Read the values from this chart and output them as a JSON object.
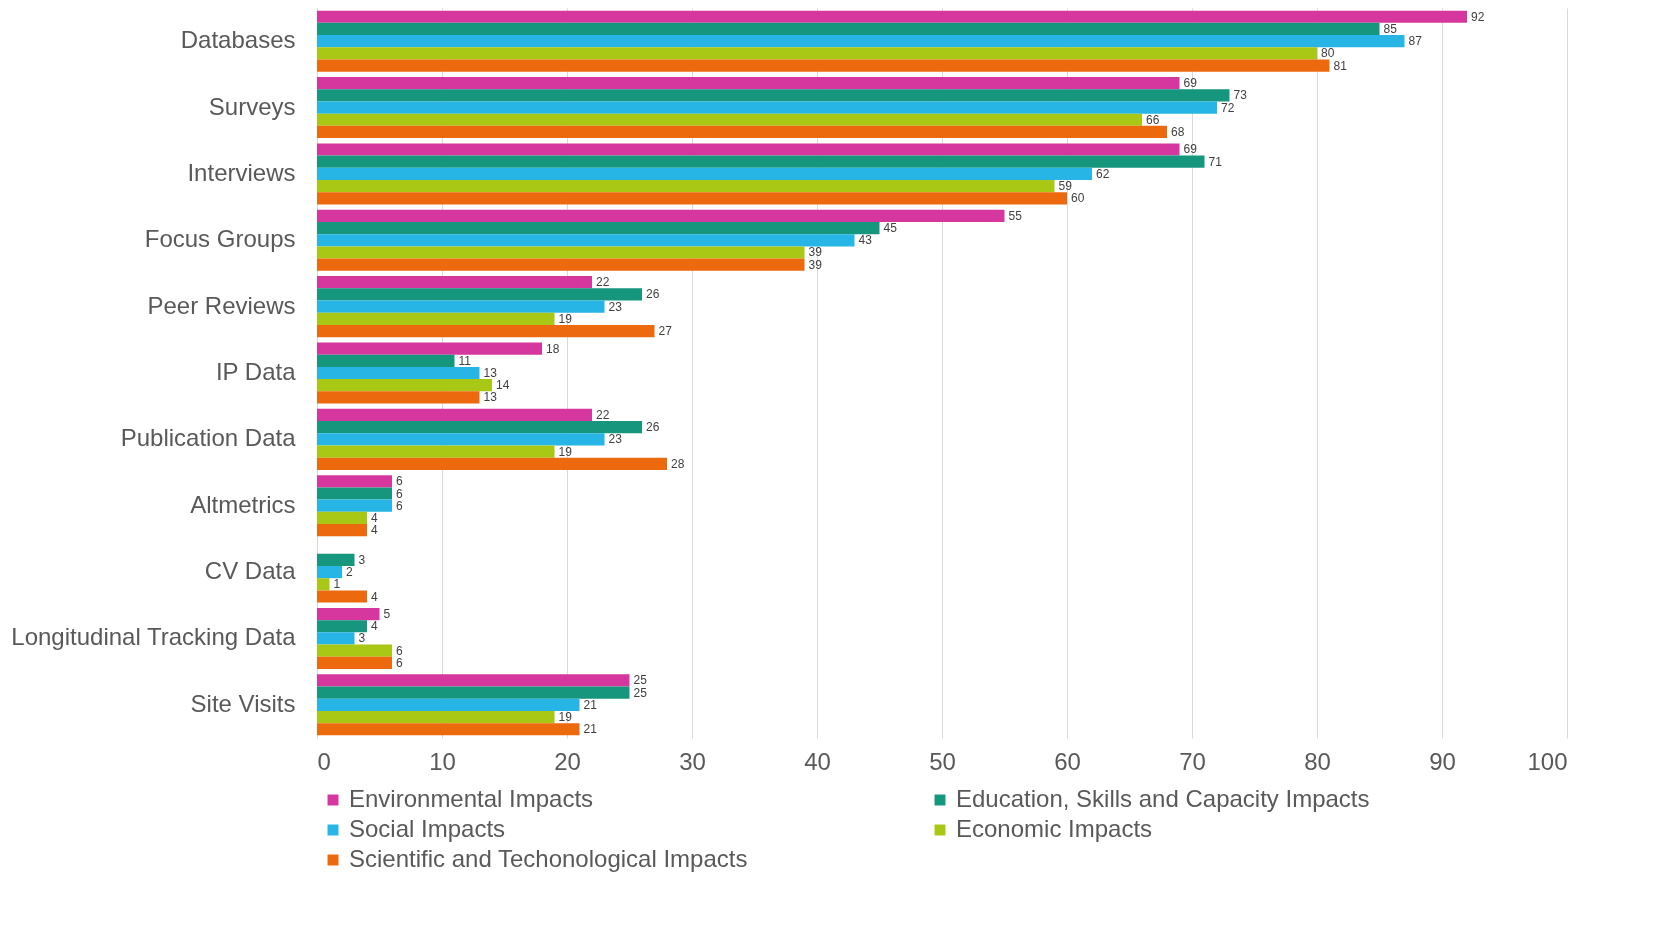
{
  "chart_data": {
    "type": "bar",
    "orientation": "horizontal",
    "categories": [
      "Databases",
      "Surveys",
      "Interviews",
      "Focus Groups",
      "Peer Reviews",
      "IP Data",
      "Publication Data",
      "Altmetrics",
      "CV Data",
      "Longitudinal Tracking Data",
      "Site Visits"
    ],
    "series": [
      {
        "name": "Environmental Impacts",
        "color": "#d6379f",
        "values": [
          92,
          69,
          69,
          55,
          22,
          18,
          22,
          6,
          null,
          5,
          25
        ]
      },
      {
        "name": "Education, Skills and Capacity Impacts",
        "color": "#15967d",
        "values": [
          85,
          73,
          71,
          45,
          26,
          11,
          26,
          6,
          3,
          4,
          25
        ]
      },
      {
        "name": "Social Impacts",
        "color": "#27b5e5",
        "values": [
          87,
          72,
          62,
          43,
          23,
          13,
          23,
          6,
          2,
          3,
          21
        ]
      },
      {
        "name": "Economic Impacts",
        "color": "#a9c715",
        "values": [
          80,
          66,
          59,
          39,
          19,
          14,
          19,
          4,
          1,
          6,
          19
        ]
      },
      {
        "name": "Scientific and Techonological Impacts",
        "color": "#ec6a0d",
        "values": [
          81,
          68,
          60,
          39,
          27,
          13,
          28,
          4,
          4,
          6,
          21
        ]
      }
    ],
    "xlim": [
      0,
      100
    ],
    "xticks": [
      0,
      10,
      20,
      30,
      40,
      50,
      60,
      70,
      80,
      90,
      100
    ],
    "grid": "x",
    "legend": "bottom",
    "data_labels": true
  }
}
